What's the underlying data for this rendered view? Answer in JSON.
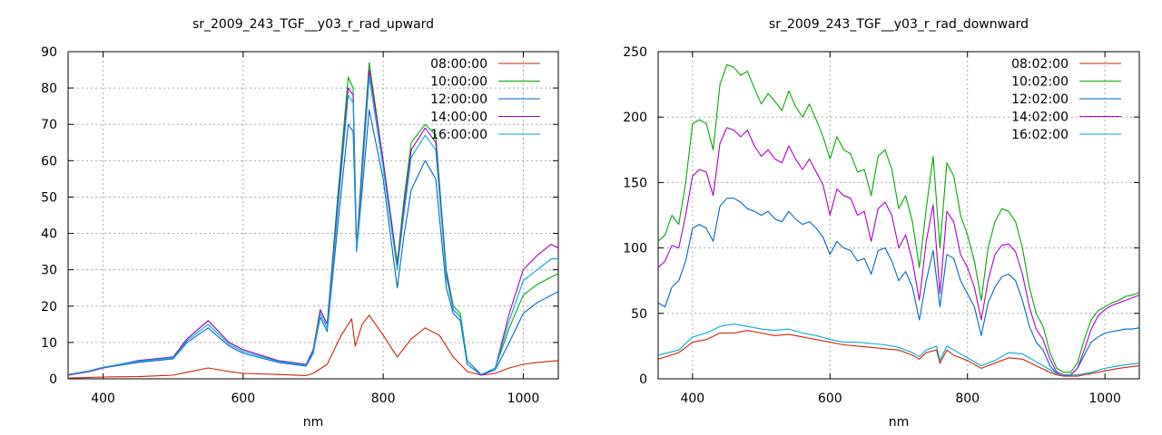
{
  "chart_data": [
    {
      "type": "line",
      "title": "sr_2009_243_TGF__y03_r_rad_upward",
      "xlabel": "nm",
      "ylabel": "",
      "xlim": [
        350,
        1050
      ],
      "ylim": [
        0,
        90
      ],
      "xticks": [
        "400",
        "600",
        "800",
        "1000"
      ],
      "xtick_values": [
        400,
        600,
        800,
        1000
      ],
      "yticks": [
        "0",
        "10",
        "20",
        "30",
        "40",
        "50",
        "60",
        "70",
        "80",
        "90"
      ],
      "ytick_values": [
        0,
        10,
        20,
        30,
        40,
        50,
        60,
        70,
        80,
        90
      ],
      "grid": true,
      "legend_position": "top-right",
      "series": [
        {
          "name": "08:00:00",
          "color": "#cc2200",
          "x": [
            350,
            400,
            450,
            500,
            520,
            550,
            580,
            600,
            650,
            690,
            700,
            720,
            740,
            755,
            760,
            770,
            780,
            800,
            820,
            840,
            860,
            880,
            900,
            920,
            940,
            960,
            980,
            1000,
            1020,
            1050
          ],
          "y": [
            0.2,
            0.5,
            0.6,
            1.0,
            1.8,
            3.0,
            2.0,
            1.5,
            1.2,
            0.9,
            1.5,
            4.0,
            12.0,
            16.5,
            9.0,
            15.0,
            17.5,
            12.0,
            6.0,
            11.0,
            14.0,
            12.0,
            6.0,
            2.0,
            1.0,
            1.5,
            3.0,
            4.0,
            4.5,
            5.0
          ]
        },
        {
          "name": "10:00:00",
          "color": "#00aa00",
          "x": [
            350,
            380,
            400,
            450,
            500,
            520,
            550,
            580,
            600,
            650,
            690,
            700,
            710,
            720,
            735,
            750,
            757,
            762,
            770,
            780,
            800,
            820,
            830,
            840,
            860,
            875,
            890,
            900,
            910,
            920,
            940,
            960,
            980,
            1000,
            1020,
            1040,
            1050
          ],
          "y": [
            1.0,
            2.0,
            3.0,
            5.0,
            6.0,
            11.0,
            16.0,
            10.0,
            8.0,
            5.0,
            4.0,
            8.0,
            19.0,
            15.0,
            50.0,
            83.0,
            80.0,
            36.0,
            60.0,
            87.0,
            60.0,
            32.0,
            50.0,
            65.0,
            70.0,
            67.0,
            30.0,
            20.0,
            18.0,
            5.0,
            1.0,
            3.0,
            14.0,
            23.0,
            26.0,
            28.0,
            29.0
          ]
        },
        {
          "name": "12:00:00",
          "color": "#0066cc",
          "x": [
            350,
            380,
            400,
            450,
            500,
            520,
            550,
            580,
            600,
            650,
            690,
            700,
            710,
            720,
            735,
            750,
            757,
            762,
            770,
            780,
            800,
            820,
            830,
            840,
            860,
            875,
            890,
            900,
            910,
            920,
            940,
            960,
            980,
            1000,
            1020,
            1040,
            1050
          ],
          "y": [
            1.0,
            2.0,
            3.0,
            4.5,
            5.5,
            10.0,
            14.0,
            9.0,
            7.0,
            4.5,
            3.5,
            7.0,
            17.0,
            13.0,
            42.0,
            70.0,
            68.0,
            35.0,
            52.0,
            74.0,
            55.0,
            25.0,
            40.0,
            52.0,
            60.0,
            55.0,
            25.0,
            18.0,
            16.0,
            4.0,
            1.0,
            2.5,
            10.0,
            18.0,
            21.0,
            23.0,
            24.0
          ]
        },
        {
          "name": "14:00:00",
          "color": "#aa00cc",
          "x": [
            350,
            380,
            400,
            450,
            500,
            520,
            550,
            580,
            600,
            650,
            690,
            700,
            710,
            720,
            735,
            750,
            757,
            762,
            770,
            780,
            800,
            820,
            830,
            840,
            860,
            875,
            890,
            900,
            910,
            920,
            940,
            960,
            980,
            1000,
            1020,
            1040,
            1050
          ],
          "y": [
            1.0,
            2.0,
            3.0,
            5.0,
            6.0,
            11.0,
            16.0,
            10.0,
            8.0,
            5.0,
            4.0,
            8.0,
            19.0,
            15.0,
            48.0,
            80.0,
            78.0,
            36.0,
            58.0,
            85.0,
            60.0,
            31.0,
            48.0,
            63.0,
            69.0,
            65.0,
            29.0,
            19.0,
            17.0,
            5.0,
            1.0,
            3.0,
            18.0,
            30.0,
            34.0,
            37.0,
            36.0
          ]
        },
        {
          "name": "16:00:00",
          "color": "#00aadd",
          "x": [
            350,
            380,
            400,
            450,
            500,
            520,
            550,
            580,
            600,
            650,
            690,
            700,
            710,
            720,
            735,
            750,
            757,
            762,
            770,
            780,
            800,
            820,
            830,
            840,
            860,
            875,
            890,
            900,
            910,
            920,
            940,
            960,
            980,
            1000,
            1020,
            1040,
            1050
          ],
          "y": [
            1.2,
            2.2,
            3.2,
            4.8,
            5.8,
            10.5,
            15.0,
            9.5,
            7.5,
            4.8,
            3.8,
            7.5,
            18.0,
            14.0,
            46.0,
            78.0,
            76.0,
            35.0,
            56.0,
            83.0,
            58.0,
            30.0,
            46.0,
            61.0,
            67.0,
            63.0,
            28.0,
            19.0,
            17.0,
            5.0,
            1.2,
            3.0,
            16.0,
            27.0,
            30.0,
            33.0,
            33.0
          ]
        }
      ]
    },
    {
      "type": "line",
      "title": "sr_2009_243_TGF__y03_r_rad_downward",
      "xlabel": "nm",
      "ylabel": "",
      "xlim": [
        350,
        1050
      ],
      "ylim": [
        0,
        250
      ],
      "xticks": [
        "400",
        "600",
        "800",
        "1000"
      ],
      "xtick_values": [
        400,
        600,
        800,
        1000
      ],
      "yticks": [
        "0",
        "50",
        "100",
        "150",
        "200",
        "250"
      ],
      "ytick_values": [
        0,
        50,
        100,
        150,
        200,
        250
      ],
      "grid": true,
      "legend_position": "top-right",
      "series": [
        {
          "name": "08:02:00",
          "color": "#cc2200",
          "x": [
            350,
            380,
            400,
            420,
            440,
            460,
            480,
            500,
            520,
            540,
            560,
            580,
            600,
            620,
            640,
            660,
            680,
            700,
            720,
            730,
            740,
            755,
            760,
            770,
            780,
            800,
            820,
            840,
            860,
            880,
            900,
            920,
            930,
            940,
            960,
            980,
            1000,
            1020,
            1050
          ],
          "y": [
            15,
            20,
            28,
            30,
            35,
            35,
            37,
            35,
            33,
            34,
            32,
            30,
            28,
            26,
            25,
            24,
            23,
            22,
            18,
            15,
            20,
            22,
            12,
            22,
            18,
            14,
            8,
            12,
            16,
            15,
            10,
            5,
            3,
            2,
            2,
            4,
            6,
            8,
            10
          ]
        },
        {
          "name": "10:02:00",
          "color": "#00aa00",
          "x": [
            350,
            360,
            370,
            380,
            390,
            400,
            410,
            420,
            430,
            440,
            450,
            460,
            470,
            480,
            490,
            500,
            510,
            520,
            530,
            540,
            550,
            560,
            570,
            580,
            590,
            600,
            610,
            620,
            630,
            640,
            650,
            660,
            670,
            680,
            690,
            700,
            710,
            720,
            730,
            740,
            750,
            760,
            770,
            780,
            790,
            800,
            810,
            820,
            830,
            840,
            850,
            860,
            870,
            880,
            890,
            900,
            910,
            920,
            930,
            940,
            950,
            960,
            970,
            980,
            990,
            1000,
            1010,
            1020,
            1030,
            1040,
            1050
          ],
          "y": [
            105,
            110,
            125,
            118,
            150,
            195,
            198,
            195,
            175,
            225,
            240,
            238,
            232,
            235,
            222,
            210,
            218,
            212,
            205,
            220,
            208,
            200,
            210,
            198,
            185,
            168,
            185,
            175,
            172,
            158,
            160,
            140,
            170,
            175,
            160,
            130,
            140,
            120,
            85,
            130,
            170,
            100,
            165,
            155,
            125,
            110,
            90,
            60,
            100,
            120,
            130,
            128,
            120,
            100,
            70,
            50,
            40,
            20,
            8,
            5,
            5,
            12,
            30,
            45,
            52,
            55,
            58,
            60,
            63,
            64,
            66
          ]
        },
        {
          "name": "12:02:00",
          "color": "#0066cc",
          "x": [
            350,
            360,
            370,
            380,
            390,
            400,
            410,
            420,
            430,
            440,
            450,
            460,
            470,
            480,
            490,
            500,
            510,
            520,
            530,
            540,
            550,
            560,
            570,
            580,
            590,
            600,
            610,
            620,
            630,
            640,
            650,
            660,
            670,
            680,
            690,
            700,
            710,
            720,
            730,
            740,
            750,
            760,
            770,
            780,
            790,
            800,
            810,
            820,
            830,
            840,
            850,
            860,
            870,
            880,
            890,
            900,
            910,
            920,
            930,
            940,
            950,
            960,
            970,
            980,
            990,
            1000,
            1010,
            1020,
            1030,
            1040,
            1050
          ],
          "y": [
            58,
            55,
            70,
            75,
            90,
            115,
            118,
            115,
            105,
            132,
            138,
            138,
            135,
            130,
            128,
            125,
            128,
            122,
            120,
            128,
            122,
            118,
            120,
            115,
            108,
            95,
            105,
            100,
            98,
            90,
            92,
            80,
            98,
            100,
            90,
            75,
            82,
            70,
            45,
            75,
            98,
            55,
            95,
            92,
            75,
            65,
            55,
            33,
            58,
            70,
            78,
            80,
            75,
            60,
            40,
            28,
            22,
            10,
            4,
            3,
            3,
            8,
            18,
            28,
            32,
            35,
            36,
            37,
            38,
            38,
            39
          ]
        },
        {
          "name": "14:02:00",
          "color": "#aa00cc",
          "x": [
            350,
            360,
            370,
            380,
            390,
            400,
            410,
            420,
            430,
            440,
            450,
            460,
            470,
            480,
            490,
            500,
            510,
            520,
            530,
            540,
            550,
            560,
            570,
            580,
            590,
            600,
            610,
            620,
            630,
            640,
            650,
            660,
            670,
            680,
            690,
            700,
            710,
            720,
            730,
            740,
            750,
            760,
            770,
            780,
            790,
            800,
            810,
            820,
            830,
            840,
            850,
            860,
            870,
            880,
            890,
            900,
            910,
            920,
            930,
            940,
            950,
            960,
            970,
            980,
            990,
            1000,
            1010,
            1020,
            1030,
            1040,
            1050
          ],
          "y": [
            85,
            90,
            102,
            100,
            125,
            155,
            160,
            158,
            140,
            180,
            192,
            190,
            185,
            190,
            178,
            170,
            175,
            168,
            165,
            178,
            168,
            160,
            168,
            158,
            148,
            125,
            145,
            140,
            138,
            125,
            128,
            105,
            130,
            135,
            125,
            100,
            110,
            90,
            60,
            105,
            133,
            65,
            128,
            120,
            95,
            85,
            70,
            45,
            75,
            95,
            102,
            103,
            97,
            80,
            55,
            38,
            30,
            15,
            5,
            3,
            3,
            8,
            22,
            38,
            48,
            53,
            56,
            58,
            60,
            62,
            64
          ]
        },
        {
          "name": "16:02:00",
          "color": "#00aadd",
          "x": [
            350,
            380,
            400,
            420,
            440,
            460,
            480,
            500,
            520,
            540,
            560,
            580,
            600,
            620,
            640,
            660,
            680,
            700,
            720,
            730,
            740,
            755,
            760,
            770,
            780,
            800,
            820,
            840,
            860,
            880,
            900,
            920,
            930,
            940,
            960,
            980,
            1000,
            1020,
            1050
          ],
          "y": [
            18,
            22,
            32,
            35,
            40,
            42,
            40,
            38,
            37,
            38,
            35,
            33,
            30,
            28,
            28,
            27,
            26,
            24,
            20,
            17,
            22,
            25,
            14,
            25,
            22,
            16,
            10,
            14,
            20,
            19,
            13,
            7,
            4,
            3,
            3,
            5,
            8,
            10,
            12
          ]
        }
      ]
    }
  ]
}
